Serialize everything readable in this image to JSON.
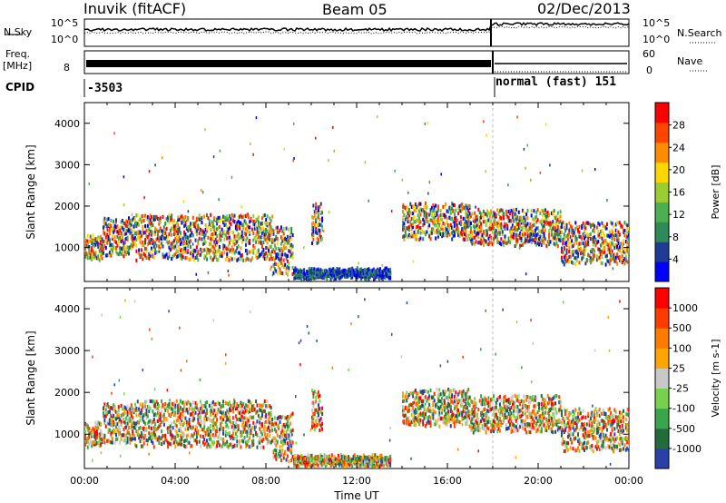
{
  "header": {
    "station": "Inuvik (fitACF)",
    "beam": "Beam 05",
    "date": "02/Dec/2013"
  },
  "noise_panel": {
    "left_label": "N.Sky",
    "left_ticks": [
      "10^5",
      "10^0"
    ],
    "right_ticks": [
      "10^5",
      "10^0"
    ],
    "right_label": "N.Search"
  },
  "freq_panel": {
    "left_label_1": "Freq.",
    "left_label_2": "[MHz]",
    "left_tick": "8",
    "right_ticks": [
      "60",
      "0"
    ],
    "right_label": "Nave"
  },
  "cpid_panel": {
    "label": "CPID",
    "segment_1": "-3503",
    "segment_2": "normal (fast) 151"
  },
  "chart_data": [
    {
      "type": "heatmap",
      "name": "power",
      "ylabel": "Slant Range [km]",
      "y_ticks": [
        "4000",
        "3000",
        "2000",
        "1000"
      ],
      "ylim": [
        180,
        4500
      ],
      "x_ticks": [
        "00:00",
        "04:00",
        "08:00",
        "12:00",
        "16:00",
        "20:00",
        "00:00"
      ],
      "xlabel": "Time UT",
      "colorbar_label": "Power [dB]",
      "colorbar_ticks": [
        "28",
        "24",
        "20",
        "16",
        "12",
        "8",
        "4"
      ],
      "colors": [
        "#0000ff",
        "#1e3c96",
        "#2e8b57",
        "#4caf50",
        "#9acd32",
        "#ffd700",
        "#ff8c00",
        "#ff4500",
        "#ff0000"
      ]
    },
    {
      "type": "heatmap",
      "name": "velocity",
      "ylabel": "Slant Range [km]",
      "y_ticks": [
        "4000",
        "3000",
        "2000",
        "1000"
      ],
      "ylim": [
        180,
        4500
      ],
      "x_ticks": [
        "00:00",
        "04:00",
        "08:00",
        "12:00",
        "16:00",
        "20:00",
        "00:00"
      ],
      "xlabel": "Time UT",
      "colorbar_label": "Velocity [m s-1]",
      "colorbar_ticks": [
        "1000",
        "500",
        "100",
        "25",
        "-25",
        "-100",
        "-500",
        "-1000"
      ],
      "colors": [
        "#2a3fa8",
        "#1f6e3a",
        "#3aa64a",
        "#77d24b",
        "#c8c8c8",
        "#ffa500",
        "#ff7a00",
        "#ff3b00",
        "#ff0000"
      ]
    }
  ]
}
